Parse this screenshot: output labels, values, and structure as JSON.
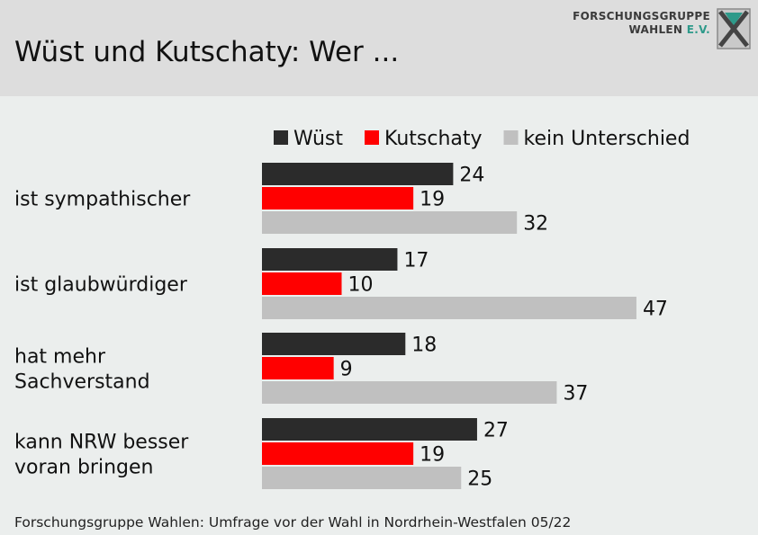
{
  "header": {
    "title": "Wüst und Kutschaty: Wer ...",
    "logo_line1": "FORSCHUNGSGRUPPE",
    "logo_line2": "WAHLEN",
    "logo_ev": "E.V."
  },
  "source": "Forschungsgruppe Wahlen: Umfrage vor der Wahl in Nordrhein-Westfalen 05/22",
  "colors": {
    "wuest": "#2b2b2b",
    "kutschaty": "#ff0000",
    "kein_unterschied": "#c0c0c0",
    "header_bg": "#dddddd",
    "page_bg": "#ebeeed",
    "logo_accent": "#2e9a8a"
  },
  "chart_data": {
    "type": "bar",
    "orientation": "horizontal",
    "categories": [
      [
        "ist sympathischer"
      ],
      [
        "ist glaubwürdiger"
      ],
      [
        "hat mehr",
        "Sachverstand"
      ],
      [
        "kann NRW besser",
        "voran bringen"
      ]
    ],
    "series": [
      {
        "name": "Wüst",
        "color": "#2b2b2b",
        "values": [
          24,
          17,
          18,
          27
        ]
      },
      {
        "name": "Kutschaty",
        "color": "#ff0000",
        "values": [
          19,
          10,
          9,
          19
        ]
      },
      {
        "name": "kein Unterschied",
        "color": "#c0c0c0",
        "values": [
          32,
          47,
          37,
          25
        ]
      }
    ],
    "legend_position": "top-right",
    "grid": false,
    "data_labels": true,
    "xlim": [
      0,
      50
    ]
  }
}
